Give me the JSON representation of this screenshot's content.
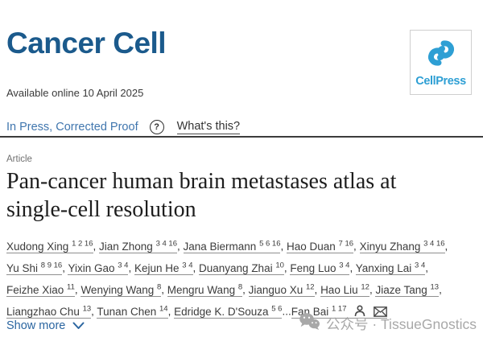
{
  "header": {
    "journal_title": "Cancer Cell",
    "publisher": "CellPress"
  },
  "meta": {
    "available_online": "Available online 10 April 2025",
    "status": "In Press, Corrected Proof",
    "help_icon": "?",
    "whats_this": "What's this?"
  },
  "article": {
    "type_label": "Article",
    "title": "Pan-cancer human brain metastases atlas at single-cell resolution"
  },
  "authors": {
    "list": [
      {
        "name": "Xudong Xing",
        "sup": "1 2 16",
        "after": ", "
      },
      {
        "name": "Jian Zhong",
        "sup": "3 4 16",
        "after": ", "
      },
      {
        "name": "Jana Biermann",
        "sup": "5 6 16",
        "after": ", "
      },
      {
        "name": "Hao Duan",
        "sup": "7 16",
        "after": ", "
      },
      {
        "name": "Xinyu Zhang",
        "sup": "3 4 16",
        "after": ",",
        "break": true
      },
      {
        "name": "Yu Shi",
        "sup": "8 9 16",
        "after": ", "
      },
      {
        "name": "Yixin Gao",
        "sup": "3 4",
        "after": ", "
      },
      {
        "name": "Kejun He",
        "sup": "3 4",
        "after": ", "
      },
      {
        "name": "Duanyang Zhai",
        "sup": "10",
        "after": ", "
      },
      {
        "name": "Feng Luo",
        "sup": "3 4",
        "after": ", "
      },
      {
        "name": "Yanxing Lai",
        "sup": "3 4",
        "after": ",",
        "break": true
      },
      {
        "name": "Feizhe Xiao",
        "sup": "11",
        "after": ", "
      },
      {
        "name": "Wenying Wang",
        "sup": "8",
        "after": ", "
      },
      {
        "name": "Mengru Wang",
        "sup": "8",
        "after": ", "
      },
      {
        "name": "Jianguo Xu",
        "sup": "12",
        "after": ", "
      },
      {
        "name": "Hao Liu",
        "sup": "12",
        "after": ", "
      },
      {
        "name": "Jiaze Tang",
        "sup": "13",
        "after": ",",
        "break": true
      },
      {
        "name": "Liangzhao Chu",
        "sup": "13",
        "after": ", "
      },
      {
        "name": "Tunan Chen",
        "sup": "14",
        "after": ", "
      },
      {
        "name": "Edridge K. D'Souza",
        "sup": "5 6",
        "after": "..."
      },
      {
        "name": "Fan Bai",
        "sup": "1 17",
        "after": "",
        "icons": true
      }
    ]
  },
  "actions": {
    "show_more": "Show more"
  },
  "watermark": {
    "text": "公众号 · TissueGnostics"
  },
  "colors": {
    "journal_blue": "#1b5a8c",
    "cellpress_blue": "#2e9fd4",
    "status_blue": "#4076ae",
    "link_blue": "#2a65a0",
    "watermark_gray": "#a8a8a8"
  }
}
